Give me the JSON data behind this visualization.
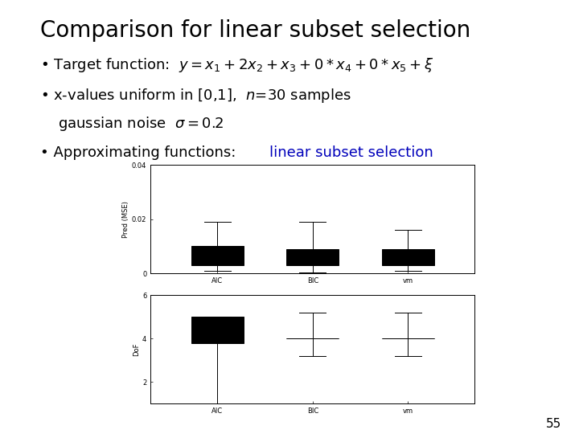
{
  "title": "Comparison for linear subset selection",
  "categories": [
    "AIC",
    "BIC",
    "vm"
  ],
  "mse_data": {
    "AIC": {
      "whislo": 0.001,
      "q1": 0.003,
      "med": 0.007,
      "q3": 0.01,
      "whishi": 0.019
    },
    "BIC": {
      "whislo": 0.0005,
      "q1": 0.003,
      "med": 0.006,
      "q3": 0.009,
      "whishi": 0.019
    },
    "vm": {
      "whislo": 0.001,
      "q1": 0.003,
      "med": 0.005,
      "q3": 0.009,
      "whishi": 0.016
    }
  },
  "mse_ylim": [
    0,
    0.04
  ],
  "mse_yticks": [
    0,
    0.02,
    0.04
  ],
  "mse_yticklabels": [
    "0",
    "0.02",
    "0.04"
  ],
  "mse_ylabel": "Pred (MSE)",
  "dof_data": {
    "AIC": {
      "whislo": 1.0,
      "q1": 3.8,
      "med": 4.0,
      "q3": 5.0,
      "whishi": 5.0
    },
    "BIC": {
      "whislo": 3.2,
      "q1": 4.0,
      "med": 4.0,
      "q3": 4.0,
      "whishi": 5.2
    },
    "vm": {
      "whislo": 3.2,
      "q1": 4.0,
      "med": 4.0,
      "q3": 4.0,
      "whishi": 5.2
    }
  },
  "dof_ylim": [
    1,
    6
  ],
  "dof_yticks": [
    2,
    4,
    6
  ],
  "dof_yticklabels": [
    "2",
    "4",
    "6"
  ],
  "dof_ylabel": "DoF",
  "slide_number": "55",
  "background_color": "#ffffff",
  "box_facecolor": "#ffffff",
  "box_edge_color": "#000000",
  "colored_text_color": "#0000bb",
  "title_fontsize": 20,
  "bullet_fontsize": 13,
  "axis_label_fontsize": 6,
  "axis_tick_fontsize": 6
}
